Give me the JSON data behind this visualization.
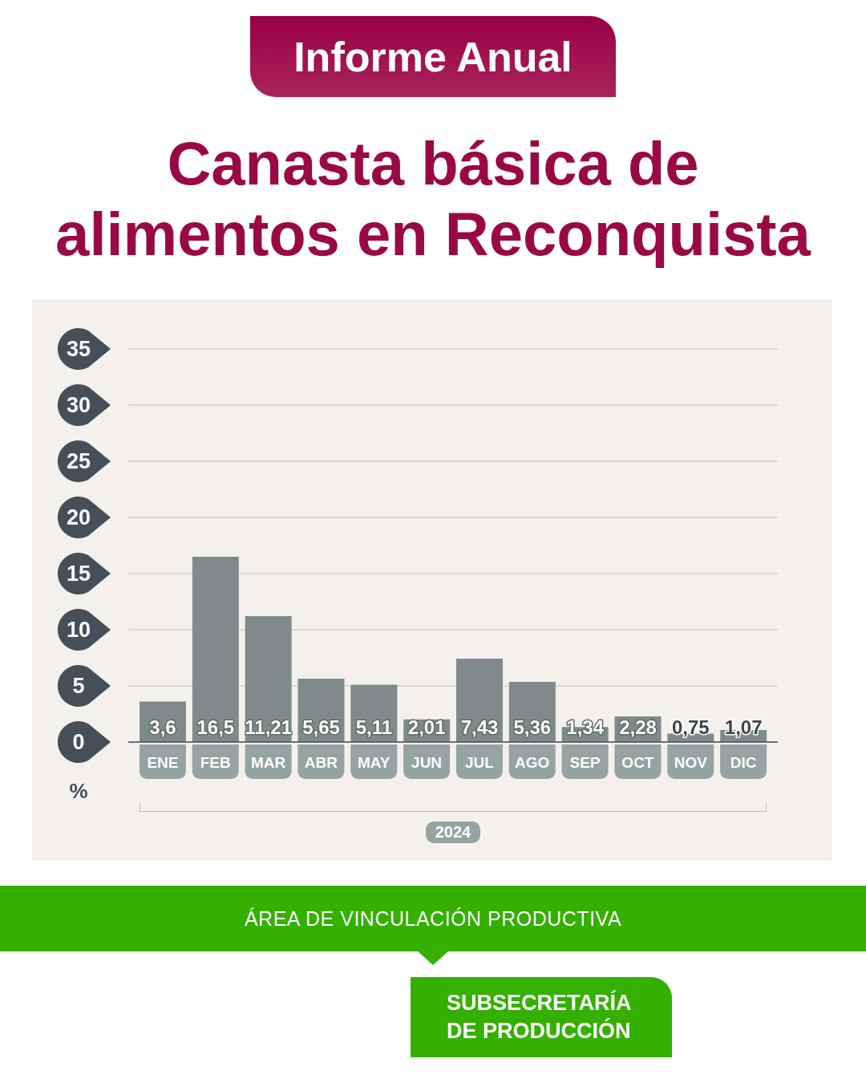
{
  "chart_data": {
    "type": "bar",
    "subtitle": "Informe Anual",
    "title": "Canasta básica de alimentos en Reconquista",
    "categories": [
      "ENE",
      "FEB",
      "MAR",
      "ABR",
      "MAY",
      "JUN",
      "JUL",
      "AGO",
      "SEP",
      "OCT",
      "NOV",
      "DIC"
    ],
    "values": [
      3.6,
      16.5,
      11.21,
      5.65,
      5.11,
      2.01,
      7.43,
      5.36,
      1.34,
      2.28,
      0.75,
      1.07
    ],
    "value_labels": [
      "3,6",
      "16,5",
      "11,21",
      "5,65",
      "5,11",
      "2,01",
      "7,43",
      "5,36",
      "1,34",
      "2,28",
      "0,75",
      "1,07"
    ],
    "color": "#7f8b8b",
    "ylim": [
      0,
      35
    ],
    "yticks": [
      0,
      5,
      10,
      15,
      20,
      25,
      30,
      35
    ],
    "grid": "y",
    "ylabel": "%",
    "xlabel": "2024",
    "annotations": [
      "ÁREA DE VINCULACIÓN PRODUCTIVA",
      "SUBSECRETARÍA DE PRODUCCIÓN"
    ]
  }
}
